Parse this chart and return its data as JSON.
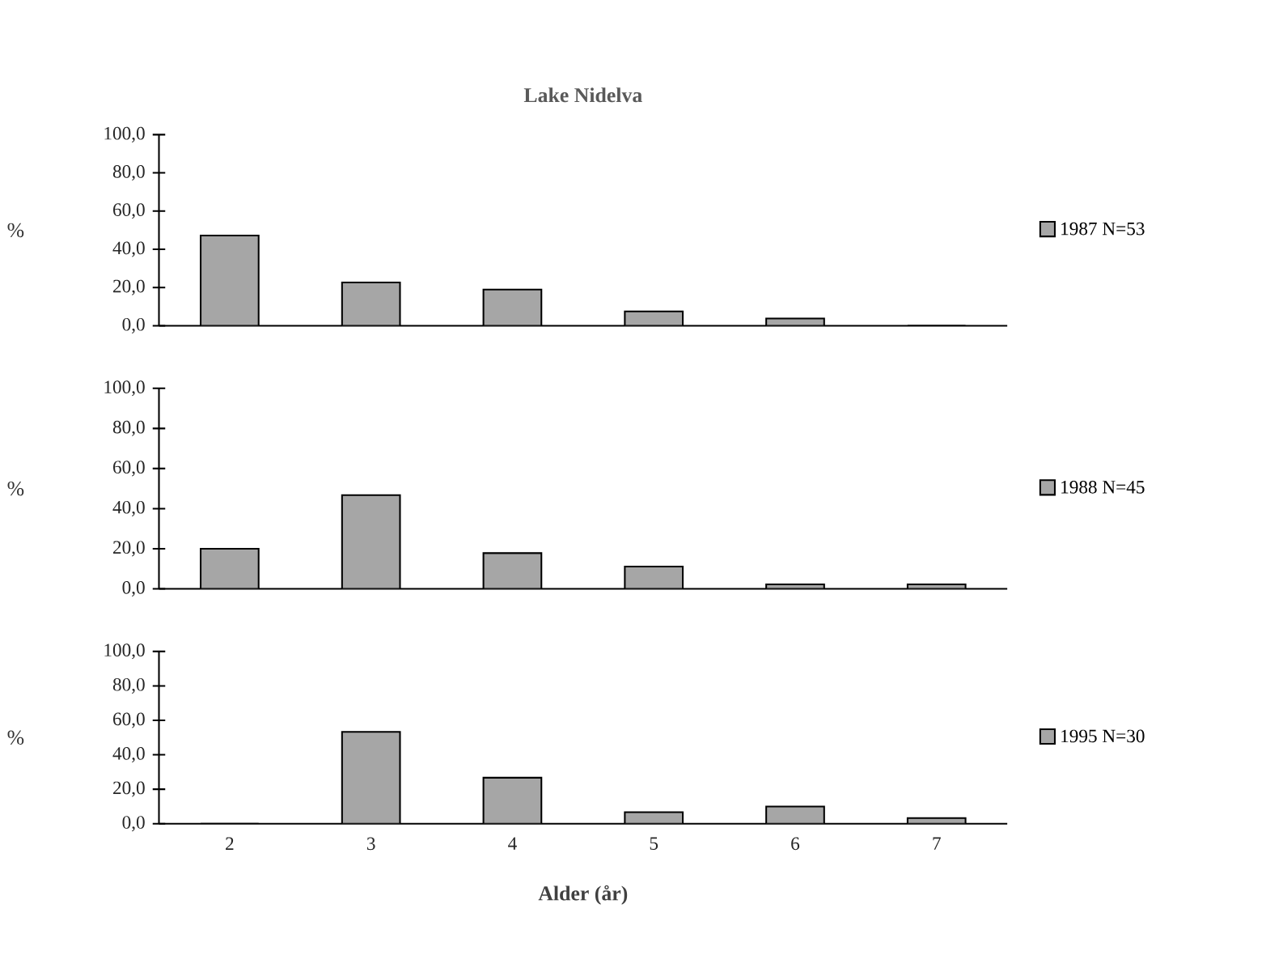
{
  "chart_data": [
    {
      "type": "bar",
      "title": "Lake Nidelva",
      "ylabel": "%",
      "categories": [
        "2",
        "3",
        "4",
        "5",
        "6",
        "7"
      ],
      "series": [
        {
          "name": "1987 N=53",
          "color": "#a6a6a6",
          "values": [
            47.2,
            22.6,
            18.9,
            7.5,
            3.8,
            0
          ]
        }
      ],
      "ylim": [
        0,
        100
      ],
      "yticks": [
        {
          "value": 0,
          "label": "0,0"
        },
        {
          "value": 20,
          "label": "20,0"
        },
        {
          "value": 40,
          "label": "40,0"
        },
        {
          "value": 60,
          "label": "60,0"
        },
        {
          "value": 80,
          "label": "80,0"
        },
        {
          "value": 100,
          "label": "100,0"
        }
      ],
      "legend": "right",
      "tick_labels": "y"
    },
    {
      "type": "bar",
      "ylabel": "%",
      "categories": [
        "2",
        "3",
        "4",
        "5",
        "6",
        "7"
      ],
      "series": [
        {
          "name": "1988 N=45",
          "color": "#a6a6a6",
          "values": [
            20.0,
            46.7,
            17.8,
            11.1,
            2.2,
            2.2
          ]
        }
      ],
      "ylim": [
        0,
        100
      ],
      "yticks": [
        {
          "value": 0,
          "label": "0,0"
        },
        {
          "value": 20,
          "label": "20,0"
        },
        {
          "value": 40,
          "label": "40,0"
        },
        {
          "value": 60,
          "label": "60,0"
        },
        {
          "value": 80,
          "label": "80,0"
        },
        {
          "value": 100,
          "label": "100,0"
        }
      ],
      "legend": "right",
      "tick_labels": "y"
    },
    {
      "type": "bar",
      "xlabel": "Alder (år)",
      "ylabel": "%",
      "categories": [
        "2",
        "3",
        "4",
        "5",
        "6",
        "7"
      ],
      "series": [
        {
          "name": "1995 N=30",
          "color": "#a6a6a6",
          "values": [
            0,
            53.3,
            26.7,
            6.7,
            10.0,
            3.3
          ]
        }
      ],
      "ylim": [
        0,
        100
      ],
      "yticks": [
        {
          "value": 0,
          "label": "0,0"
        },
        {
          "value": 20,
          "label": "20,0"
        },
        {
          "value": 40,
          "label": "40,0"
        },
        {
          "value": 60,
          "label": "60,0"
        },
        {
          "value": 80,
          "label": "80,0"
        },
        {
          "value": 100,
          "label": "100,0"
        }
      ],
      "legend": "right"
    }
  ]
}
